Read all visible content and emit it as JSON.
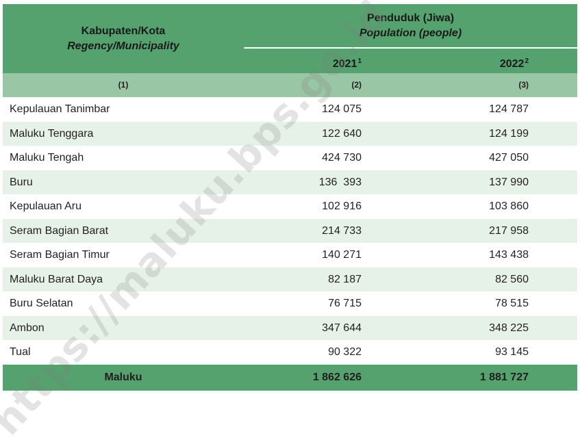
{
  "header": {
    "region_label": "Kabupaten/Kota",
    "region_label_en": "Regency/Municipality",
    "group_label": "Penduduk (Jiwa)",
    "group_label_en": "Population (people)",
    "year1": "2021",
    "year1_note": "1",
    "year2": "2022",
    "year2_note": "2"
  },
  "column_numbers": [
    "(1)",
    "(2)",
    "(3)"
  ],
  "rows": [
    {
      "name": "Kepulauan Tanimbar",
      "v2021": "124 075",
      "v2022": "124 787"
    },
    {
      "name": "Maluku Tenggara",
      "v2021": "122 640",
      "v2022": "124 199"
    },
    {
      "name": "Maluku Tengah",
      "v2021": "424 730",
      "v2022": "427 050"
    },
    {
      "name": "Buru",
      "v2021": "136  393",
      "v2022": "137 990"
    },
    {
      "name": "Kepulauan Aru",
      "v2021": "102 916",
      "v2022": "103 860"
    },
    {
      "name": "Seram Bagian Barat",
      "v2021": "214 733",
      "v2022": "217 958"
    },
    {
      "name": "Seram Bagian Timur",
      "v2021": "140 271",
      "v2022": "143 438"
    },
    {
      "name": "Maluku Barat Daya",
      "v2021": "82 187",
      "v2022": "82 560"
    },
    {
      "name": "Buru Selatan",
      "v2021": "76 715",
      "v2022": "78 515"
    },
    {
      "name": "Ambon",
      "v2021": "347 644",
      "v2022": "348 225"
    },
    {
      "name": "Tual",
      "v2021": "90 322",
      "v2022": "93 145"
    }
  ],
  "total": {
    "name": "Maluku",
    "v2021": "1 862 626",
    "v2022": "1 881 727"
  },
  "watermark": "https://maluku.bps.go.id",
  "colors": {
    "header": "#55a26e",
    "subheader": "#99c6a5",
    "stripe": "#e6f1e8"
  }
}
